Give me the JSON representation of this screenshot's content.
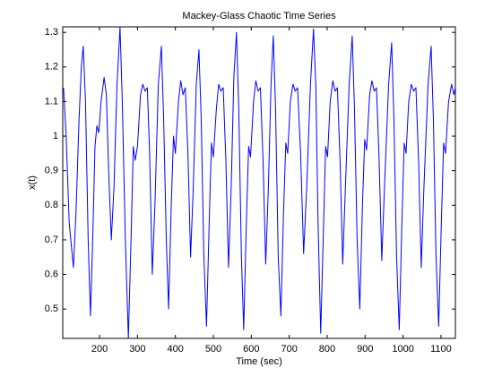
{
  "chart_data": {
    "type": "line",
    "title": "Mackey-Glass Chaotic Time Series",
    "xlabel": "Time (sec)",
    "ylabel": "x(t)",
    "color": "#0000ff",
    "grid": false,
    "xlim": [
      103,
      1138
    ],
    "xticks": [
      200,
      300,
      400,
      500,
      600,
      700,
      800,
      900,
      1000,
      1100
    ],
    "ylim": [
      0.415,
      1.316
    ],
    "yticks": [
      0.5,
      0.6,
      0.7,
      0.8,
      0.9,
      1,
      1.1,
      1.2,
      1.3
    ],
    "x": [
      105,
      112,
      120,
      131,
      138,
      146,
      152,
      157,
      163,
      170,
      176,
      182,
      188,
      193,
      198,
      204,
      212,
      218,
      224,
      231,
      238,
      246,
      254,
      260,
      268,
      276,
      283,
      289,
      294,
      300,
      308,
      314,
      320,
      326,
      332,
      339,
      346,
      355,
      363,
      369,
      376,
      382,
      389,
      395,
      400,
      408,
      414,
      420,
      426,
      433,
      440,
      447,
      455,
      462,
      468,
      475,
      482,
      489,
      495,
      500,
      508,
      514,
      520,
      526,
      533,
      540,
      547,
      554,
      561,
      567,
      574,
      580,
      587,
      593,
      598,
      606,
      612,
      618,
      624,
      631,
      638,
      645,
      652,
      658,
      664,
      671,
      678,
      685,
      691,
      696,
      703,
      710,
      716,
      722,
      730,
      738,
      746,
      756,
      764,
      770,
      776,
      783,
      790,
      796,
      801,
      808,
      815,
      821,
      827,
      834,
      841,
      848,
      858,
      866,
      872,
      879,
      886,
      893,
      899,
      904,
      912,
      918,
      924,
      930,
      937,
      944,
      951,
      962,
      970,
      976,
      983,
      990,
      997,
      1003,
      1008,
      1015,
      1022,
      1028,
      1034,
      1041,
      1048,
      1055,
      1066,
      1074,
      1080,
      1087,
      1094,
      1101,
      1107,
      1112,
      1120,
      1128,
      1134,
      1138
    ],
    "values": [
      1.14,
      1.0,
      0.75,
      0.62,
      0.78,
      1.05,
      1.2,
      1.26,
      1.1,
      0.7,
      0.48,
      0.7,
      0.97,
      1.03,
      1.01,
      1.1,
      1.17,
      1.12,
      0.9,
      0.7,
      0.85,
      1.15,
      1.315,
      1.1,
      0.7,
      0.416,
      0.7,
      0.97,
      0.93,
      0.97,
      1.12,
      1.15,
      1.13,
      1.14,
      0.95,
      0.6,
      0.8,
      1.15,
      1.26,
      1.05,
      0.7,
      0.5,
      0.8,
      1.0,
      0.95,
      1.1,
      1.16,
      1.12,
      1.14,
      0.95,
      0.65,
      0.85,
      1.15,
      1.25,
      1.05,
      0.65,
      0.45,
      0.75,
      0.98,
      0.94,
      1.08,
      1.15,
      1.13,
      1.14,
      0.93,
      0.62,
      0.85,
      1.17,
      1.3,
      1.08,
      0.65,
      0.44,
      0.75,
      0.97,
      0.94,
      1.1,
      1.16,
      1.13,
      1.14,
      0.93,
      0.63,
      0.85,
      1.15,
      1.29,
      1.08,
      0.65,
      0.48,
      0.78,
      0.98,
      0.95,
      1.1,
      1.15,
      1.13,
      1.14,
      0.95,
      0.66,
      0.85,
      1.15,
      1.31,
      1.15,
      0.75,
      0.43,
      0.72,
      0.97,
      0.94,
      1.1,
      1.16,
      1.13,
      1.14,
      0.93,
      0.63,
      0.85,
      1.15,
      1.29,
      1.08,
      0.7,
      0.5,
      0.8,
      0.99,
      0.96,
      1.12,
      1.16,
      1.13,
      1.14,
      0.93,
      0.64,
      0.85,
      1.15,
      1.27,
      1.05,
      0.65,
      0.44,
      0.75,
      0.98,
      0.95,
      1.1,
      1.15,
      1.13,
      1.14,
      0.93,
      0.62,
      0.85,
      1.15,
      1.26,
      1.05,
      0.65,
      0.45,
      0.75,
      0.98,
      0.95,
      1.1,
      1.15,
      1.12,
      1.14
    ]
  }
}
